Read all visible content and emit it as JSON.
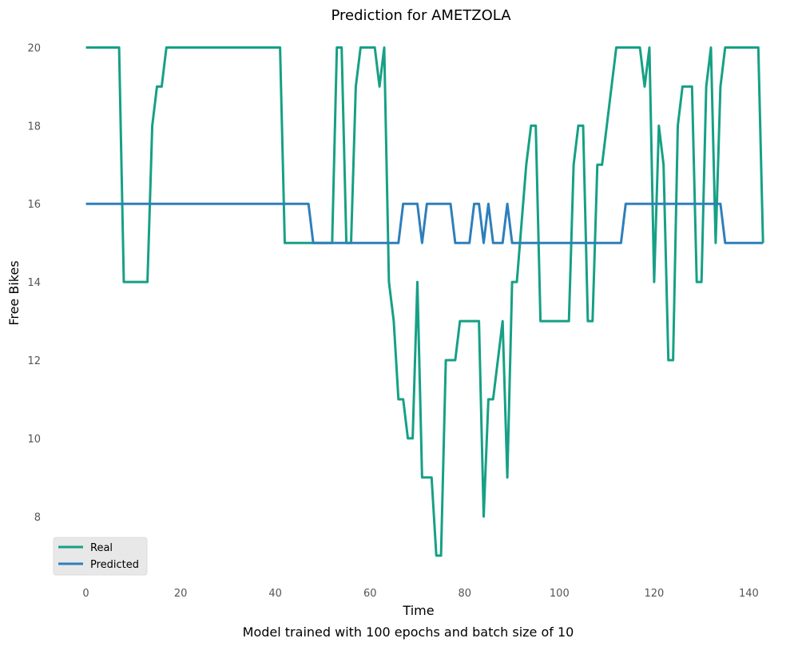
{
  "chart_data": {
    "type": "line",
    "title": "Prediction for AMETZOLA",
    "xlabel": "Time",
    "ylabel": "Free Bikes",
    "caption": "Model trained with 100 epochs and batch size of 10",
    "xlim": [
      -6,
      146
    ],
    "ylim": [
      6.3,
      20.5
    ],
    "xticks": [
      0,
      20,
      40,
      60,
      80,
      100,
      120,
      140
    ],
    "yticks": [
      8,
      10,
      12,
      14,
      16,
      18,
      20
    ],
    "grid": false,
    "legend_position": "bottom-left",
    "series": [
      {
        "name": "Real",
        "color": "#16a085",
        "points": [
          [
            0,
            20
          ],
          [
            7,
            20
          ],
          [
            8,
            14
          ],
          [
            13,
            14
          ],
          [
            14,
            18
          ],
          [
            15,
            19
          ],
          [
            16,
            19
          ],
          [
            17,
            20
          ],
          [
            41,
            20
          ],
          [
            42,
            15
          ],
          [
            52,
            15
          ],
          [
            53,
            20
          ],
          [
            54,
            20
          ],
          [
            55,
            15
          ],
          [
            56,
            15
          ],
          [
            57,
            19
          ],
          [
            58,
            20
          ],
          [
            61,
            20
          ],
          [
            62,
            19
          ],
          [
            63,
            20
          ],
          [
            64,
            14
          ],
          [
            65,
            13
          ],
          [
            66,
            11
          ],
          [
            67,
            11
          ],
          [
            68,
            10
          ],
          [
            69,
            10
          ],
          [
            70,
            14
          ],
          [
            71,
            9
          ],
          [
            73,
            9
          ],
          [
            74,
            7
          ],
          [
            75,
            7
          ],
          [
            76,
            12
          ],
          [
            78,
            12
          ],
          [
            79,
            13
          ],
          [
            83,
            13
          ],
          [
            84,
            8
          ],
          [
            85,
            11
          ],
          [
            86,
            11
          ],
          [
            88,
            13
          ],
          [
            89,
            9
          ],
          [
            90,
            14
          ],
          [
            91,
            14
          ],
          [
            93,
            17
          ],
          [
            94,
            18
          ],
          [
            95,
            18
          ],
          [
            96,
            13
          ],
          [
            102,
            13
          ],
          [
            103,
            17
          ],
          [
            104,
            18
          ],
          [
            105,
            18
          ],
          [
            106,
            13
          ],
          [
            107,
            13
          ],
          [
            108,
            17
          ],
          [
            109,
            17
          ],
          [
            112,
            20
          ],
          [
            117,
            20
          ],
          [
            118,
            19
          ],
          [
            119,
            20
          ],
          [
            120,
            14
          ],
          [
            121,
            18
          ],
          [
            122,
            17
          ],
          [
            123,
            12
          ],
          [
            124,
            12
          ],
          [
            125,
            18
          ],
          [
            126,
            19
          ],
          [
            128,
            19
          ],
          [
            129,
            14
          ],
          [
            130,
            14
          ],
          [
            131,
            19
          ],
          [
            132,
            20
          ],
          [
            133,
            15
          ],
          [
            134,
            19
          ],
          [
            135,
            20
          ],
          [
            142,
            20
          ],
          [
            143,
            15
          ]
        ]
      },
      {
        "name": "Predicted",
        "color": "#2e7fba",
        "points": [
          [
            0,
            16
          ],
          [
            47,
            16
          ],
          [
            48,
            15
          ],
          [
            52,
            15
          ],
          [
            53,
            15
          ],
          [
            66,
            15
          ],
          [
            67,
            16
          ],
          [
            70,
            16
          ],
          [
            71,
            15
          ],
          [
            72,
            16
          ],
          [
            77,
            16
          ],
          [
            78,
            15
          ],
          [
            81,
            15
          ],
          [
            82,
            16
          ],
          [
            83,
            16
          ],
          [
            84,
            15
          ],
          [
            85,
            16
          ],
          [
            86,
            15
          ],
          [
            88,
            15
          ],
          [
            89,
            16
          ],
          [
            90,
            15
          ],
          [
            113,
            15
          ],
          [
            114,
            16
          ],
          [
            134,
            16
          ],
          [
            135,
            15
          ],
          [
            143,
            15
          ]
        ]
      }
    ]
  }
}
